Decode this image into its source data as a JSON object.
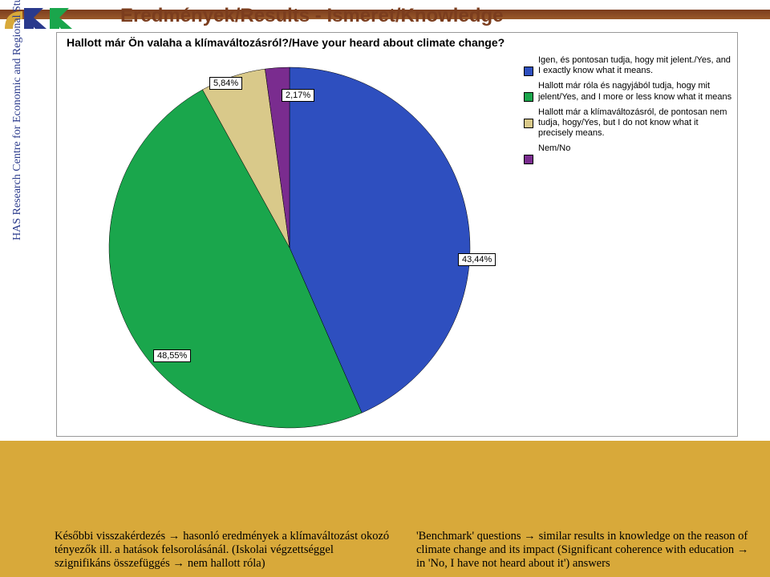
{
  "layout": {
    "bottom_band_color": "#d8a93a",
    "top_stripe_start": "#7b3d1e",
    "top_stripe_end": "#9a5a2a"
  },
  "vertical_text": "HAS Research Centre for Economic and Regional Studies",
  "title": "Eredmények/Results - Ismeret/Knowledge",
  "chart": {
    "type": "pie",
    "title": "Hallott már Ön valaha a klímaváltozásról?/Have your heard about climate change?",
    "background_color": "#ffffff",
    "title_fontsize": 14,
    "label_fontsize": 11,
    "legend_fontsize": 11,
    "slices": [
      {
        "label_hu": "Igen, és pontosan tudja, hogy mit jelent.",
        "label_en": "Yes, and I exactly know what it means.",
        "value": 43.44,
        "display": "43,44%",
        "color": "#2e4fbf"
      },
      {
        "label_hu": "Hallott már róla és nagyjából tudja, hogy mit jelent",
        "label_en": "Yes, and I more or less know what it means",
        "value": 48.55,
        "display": "48,55%",
        "color": "#1aa64c"
      },
      {
        "label_hu": "Hallott már a klímaváltozásról, de pontosan nem tudja, hogy",
        "label_en": "Yes, but I do not know what it precisely means.",
        "value": 5.84,
        "display": "5,84%",
        "color": "#d9c98a"
      },
      {
        "label_hu": "Nem",
        "label_en": "No",
        "value": 2.17,
        "display": "2,17%",
        "color": "#7a2c8f"
      }
    ]
  },
  "footer": {
    "left_text": "Későbbi visszakérdezés → hasonló eredmények a klímaváltozást okozó tényezők ill. a hatások felsorolásánál. (Iskolai végzettséggel szignifikáns összefüggés → nem hallott róla)",
    "right_text": "'Benchmark' questions → similar results in knowledge on the reason of climate change and its impact (Significant coherence with education → in 'No, I have not heard about it') answers"
  }
}
